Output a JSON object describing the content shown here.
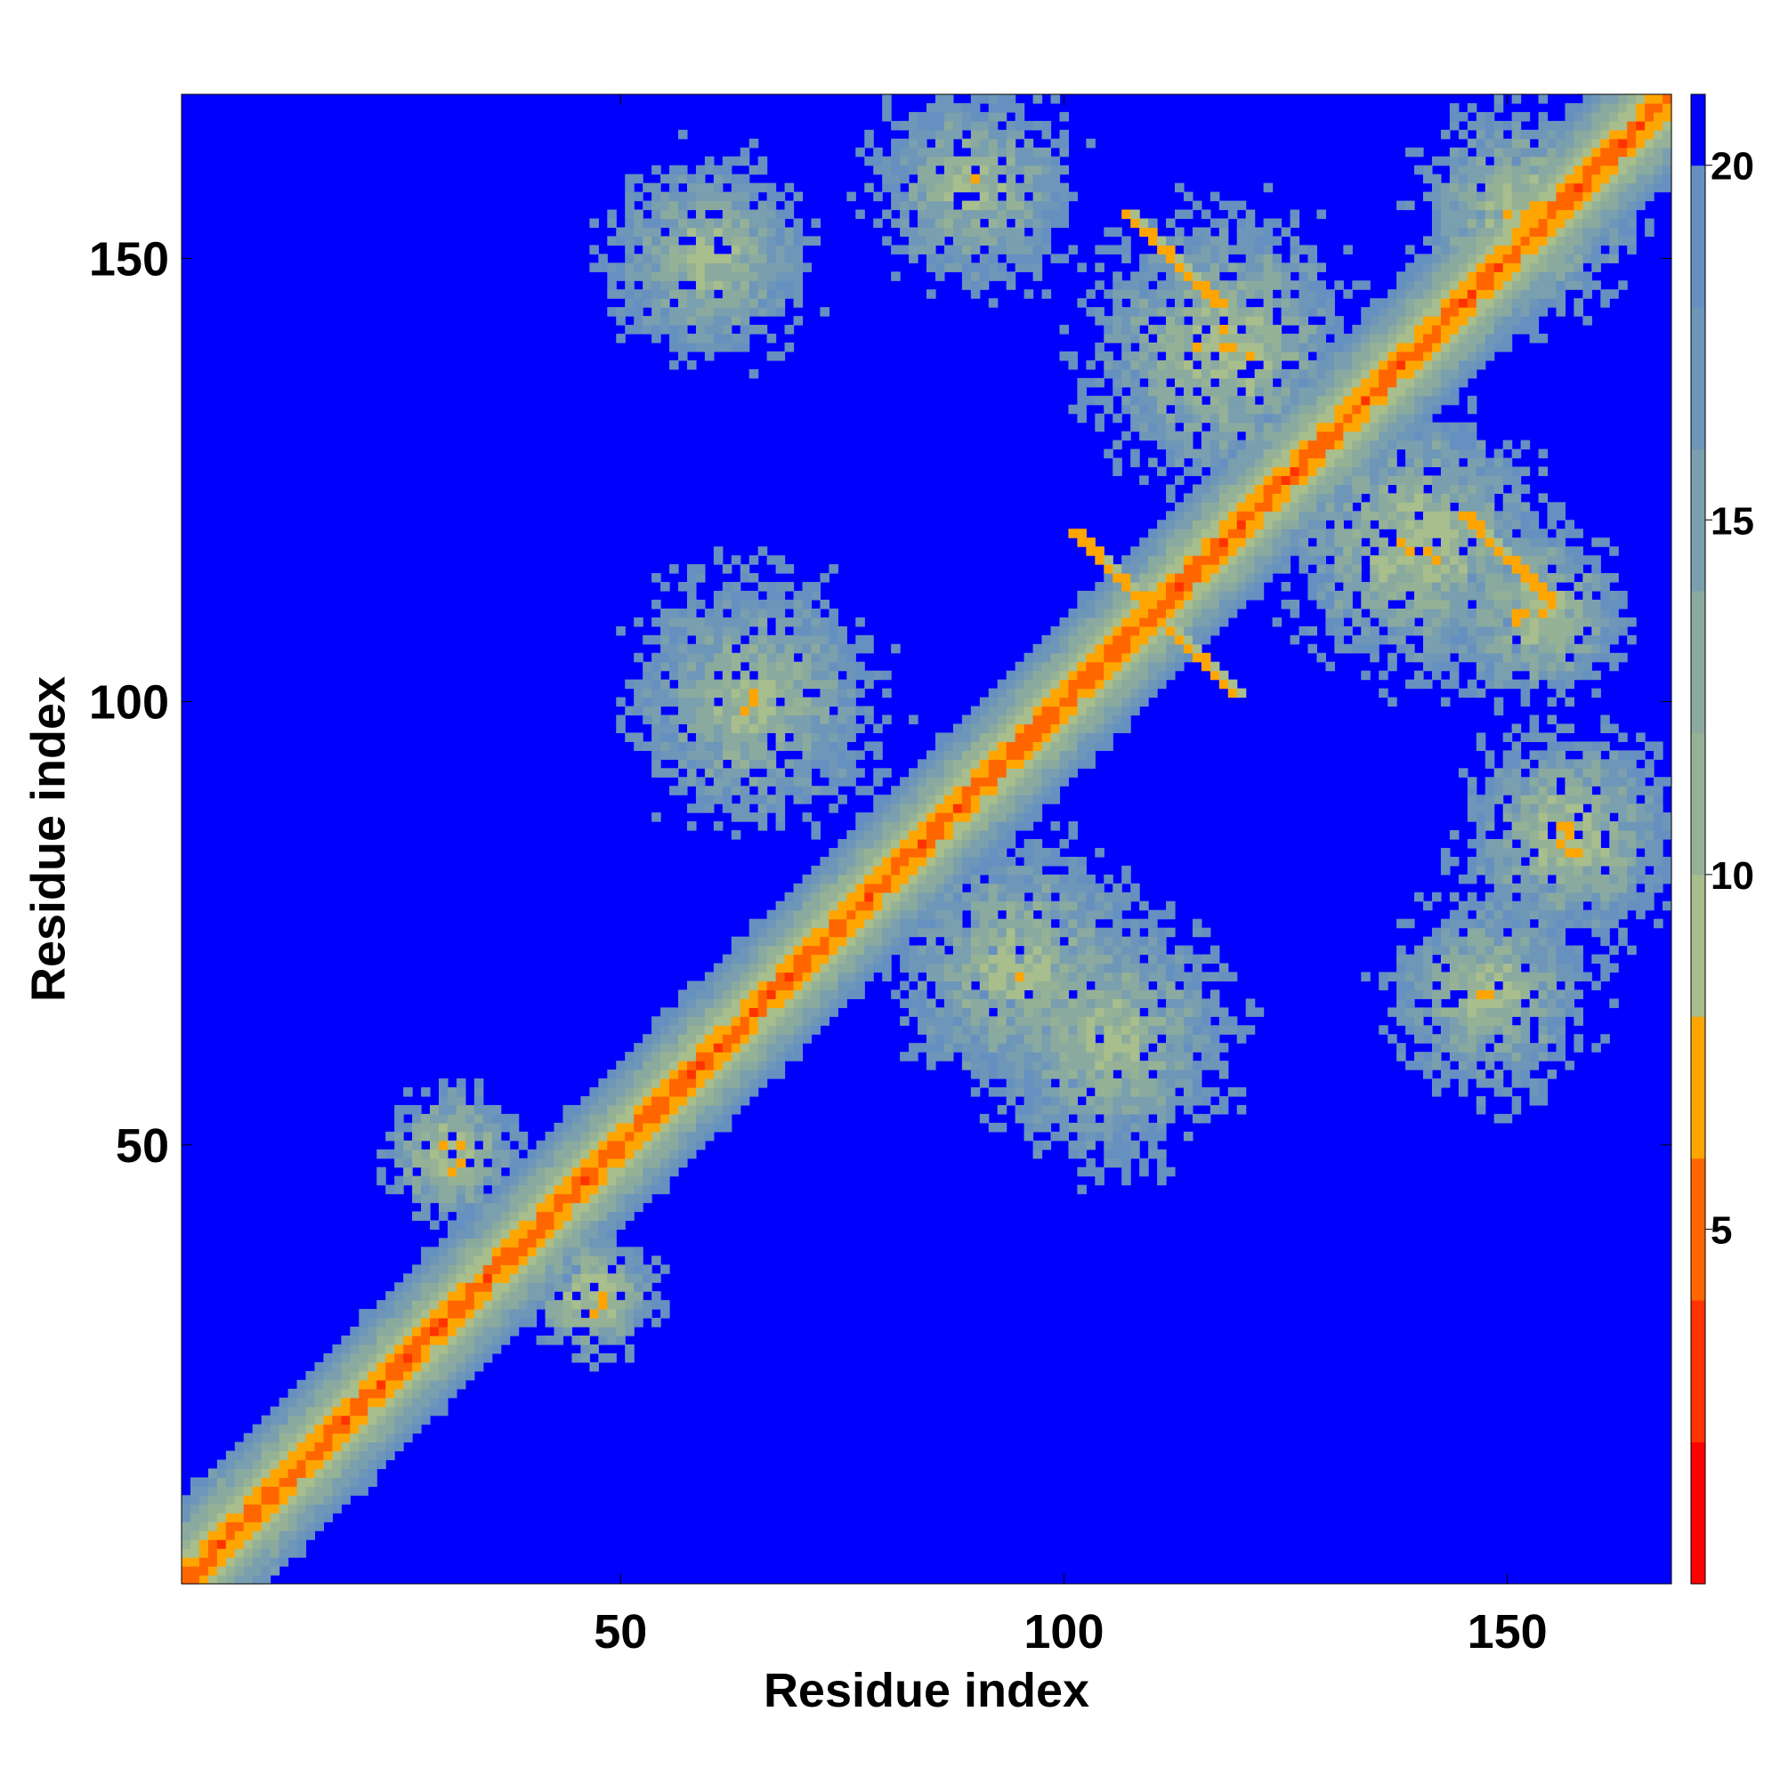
{
  "chart_data": {
    "type": "heatmap",
    "title": "",
    "xlabel": "Residue index",
    "ylabel": "Residue index",
    "n_residues": 168,
    "xlim": [
      1,
      168
    ],
    "ylim": [
      1,
      168
    ],
    "x_ticks": [
      50,
      100,
      150
    ],
    "y_ticks": [
      50,
      100,
      150
    ],
    "colorbar": {
      "ticks": [
        5,
        10,
        15,
        20
      ],
      "range": [
        0,
        21
      ],
      "levels": [
        {
          "max": 2,
          "color": "#ff0000"
        },
        {
          "max": 4,
          "color": "#ff3300"
        },
        {
          "max": 6,
          "color": "#ff6600"
        },
        {
          "max": 8,
          "color": "#ffa500"
        },
        {
          "max": 10,
          "color": "#a8be8c"
        },
        {
          "max": 12,
          "color": "#96b296"
        },
        {
          "max": 14,
          "color": "#8aaaa0"
        },
        {
          "max": 16,
          "color": "#7a9fae"
        },
        {
          "max": 18,
          "color": "#6e96b8"
        },
        {
          "max": 20,
          "color": "#6690c0"
        },
        {
          "max": 21,
          "color": "#0000ff"
        }
      ],
      "background_color": "#0000ff",
      "background_label": "> 20"
    },
    "contact_regions": [
      {
        "type": "diagonal-band",
        "from": 1,
        "to": 168,
        "min_distance": 3.8,
        "falloff_per_residue": 1.6
      },
      {
        "type": "blob",
        "center": [
          31,
          49
        ],
        "radius": 7,
        "min_distance": 6
      },
      {
        "type": "blob",
        "center": [
          47,
          33
        ],
        "radius": 7,
        "min_distance": 6
      },
      {
        "type": "blob",
        "center": [
          65,
          100
        ],
        "radius": 15,
        "min_distance": 8
      },
      {
        "type": "blob",
        "center": [
          95,
          70
        ],
        "radius": 15,
        "min_distance": 8
      },
      {
        "type": "blob",
        "center": [
          60,
          150
        ],
        "radius": 12,
        "min_distance": 8
      },
      {
        "type": "blob",
        "center": [
          90,
          158
        ],
        "radius": 12,
        "min_distance": 8
      },
      {
        "type": "blob",
        "center": [
          118,
          140
        ],
        "radius": 15,
        "min_distance": 7
      },
      {
        "type": "blob",
        "center": [
          140,
          118
        ],
        "radius": 15,
        "min_distance": 7
      },
      {
        "type": "blob",
        "center": [
          152,
          155
        ],
        "radius": 12,
        "min_distance": 7
      },
      {
        "type": "blob",
        "center": [
          157,
          85
        ],
        "radius": 12,
        "min_distance": 7
      },
      {
        "type": "blob",
        "center": [
          148,
          67
        ],
        "radius": 12,
        "min_distance": 8
      },
      {
        "type": "blob",
        "center": [
          105,
          62
        ],
        "radius": 15,
        "min_distance": 8
      },
      {
        "type": "blob",
        "center": [
          153,
          110
        ],
        "radius": 10,
        "min_distance": 7
      },
      {
        "type": "blob",
        "center": [
          8,
          8
        ],
        "radius": 6,
        "min_distance": 5
      },
      {
        "type": "anti-diagonal",
        "center": [
          110,
          110
        ],
        "half_length": 9,
        "min_distance": 6
      },
      {
        "type": "anti-diagonal",
        "center": [
          150,
          116
        ],
        "half_length": 5,
        "min_distance": 6
      },
      {
        "type": "anti-diagonal",
        "center": [
          112,
          150
        ],
        "half_length": 5,
        "min_distance": 6
      }
    ]
  }
}
